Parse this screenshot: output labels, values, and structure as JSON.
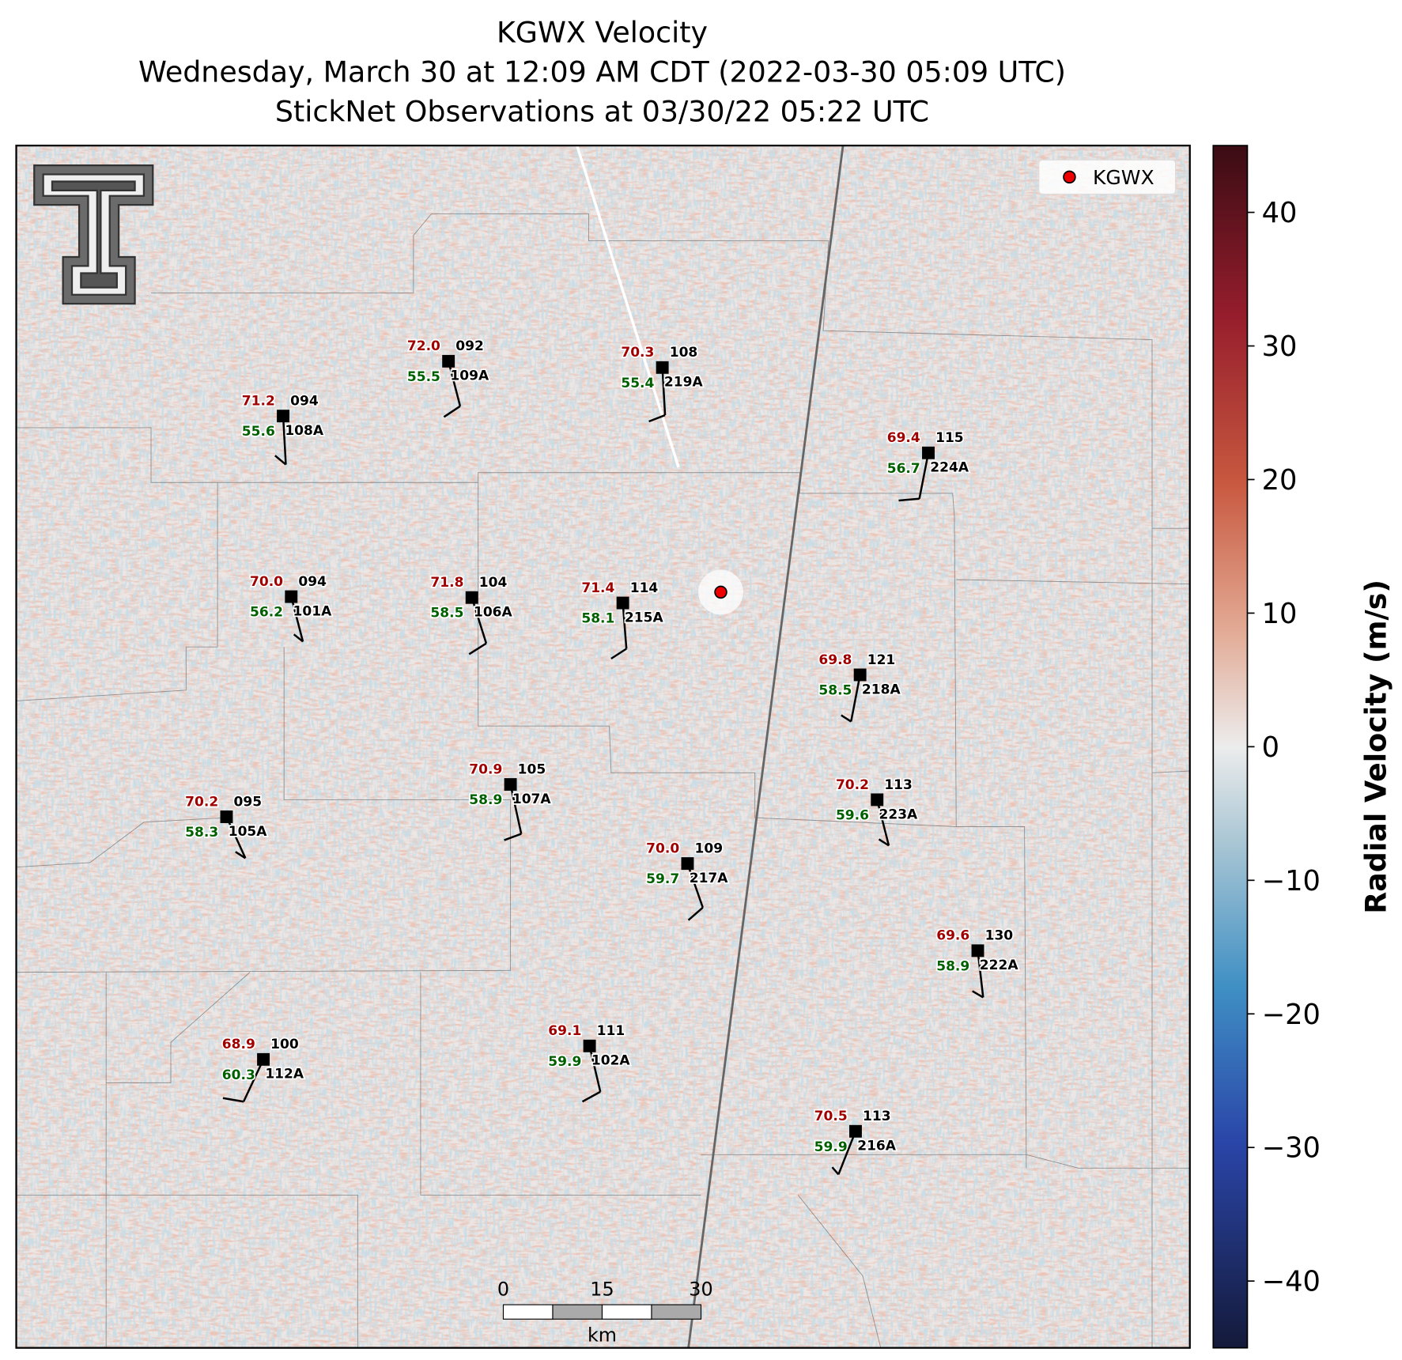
{
  "title_lines": [
    "KGWX Velocity",
    "Wednesday, March 30 at 12:09 AM CDT (2022-03-30 05:09 UTC)",
    "StickNet Observations at 03/30/22 05:22 UTC"
  ],
  "legend": {
    "label": "KGWX"
  },
  "colorbar": {
    "label": "Radial Velocity (m/s)",
    "lim": [
      -45,
      45
    ],
    "ticks": [
      40,
      30,
      20,
      10,
      0,
      {
        "value": -10,
        "label": "−10"
      },
      {
        "value": -20,
        "label": "−20"
      },
      {
        "value": -30,
        "label": "−30"
      },
      {
        "value": -40,
        "label": "−40"
      }
    ]
  },
  "scale_bar": {
    "ticks": [
      "0",
      "15",
      "30"
    ],
    "unit": "km"
  },
  "stations": [
    {
      "temp": "71.2",
      "dewpoint": "55.6",
      "pressure": "094",
      "id": "108A"
    },
    {
      "temp": "72.0",
      "dewpoint": "55.5",
      "pressure": "092",
      "id": "109A"
    },
    {
      "temp": "70.3",
      "dewpoint": "55.4",
      "pressure": "108",
      "id": "219A"
    },
    {
      "temp": "69.4",
      "dewpoint": "56.7",
      "pressure": "115",
      "id": "224A"
    },
    {
      "temp": "70.0",
      "dewpoint": "56.2",
      "pressure": "094",
      "id": "101A"
    },
    {
      "temp": "71.8",
      "dewpoint": "58.5",
      "pressure": "104",
      "id": "106A"
    },
    {
      "temp": "71.4",
      "dewpoint": "58.1",
      "pressure": "114",
      "id": "215A"
    },
    {
      "temp": "69.8",
      "dewpoint": "58.5",
      "pressure": "121",
      "id": "218A"
    },
    {
      "temp": "70.2",
      "dewpoint": "58.3",
      "pressure": "095",
      "id": "105A"
    },
    {
      "temp": "70.9",
      "dewpoint": "58.9",
      "pressure": "105",
      "id": "107A"
    },
    {
      "temp": "70.2",
      "dewpoint": "59.6",
      "pressure": "113",
      "id": "223A"
    },
    {
      "temp": "70.0",
      "dewpoint": "59.7",
      "pressure": "109",
      "id": "217A"
    },
    {
      "temp": "69.6",
      "dewpoint": "58.9",
      "pressure": "130",
      "id": "222A"
    },
    {
      "temp": "68.9",
      "dewpoint": "60.3",
      "pressure": "100",
      "id": "112A"
    },
    {
      "temp": "69.1",
      "dewpoint": "59.9",
      "pressure": "111",
      "id": "102A"
    },
    {
      "temp": "70.5",
      "dewpoint": "59.9",
      "pressure": "113",
      "id": "216A"
    }
  ]
}
